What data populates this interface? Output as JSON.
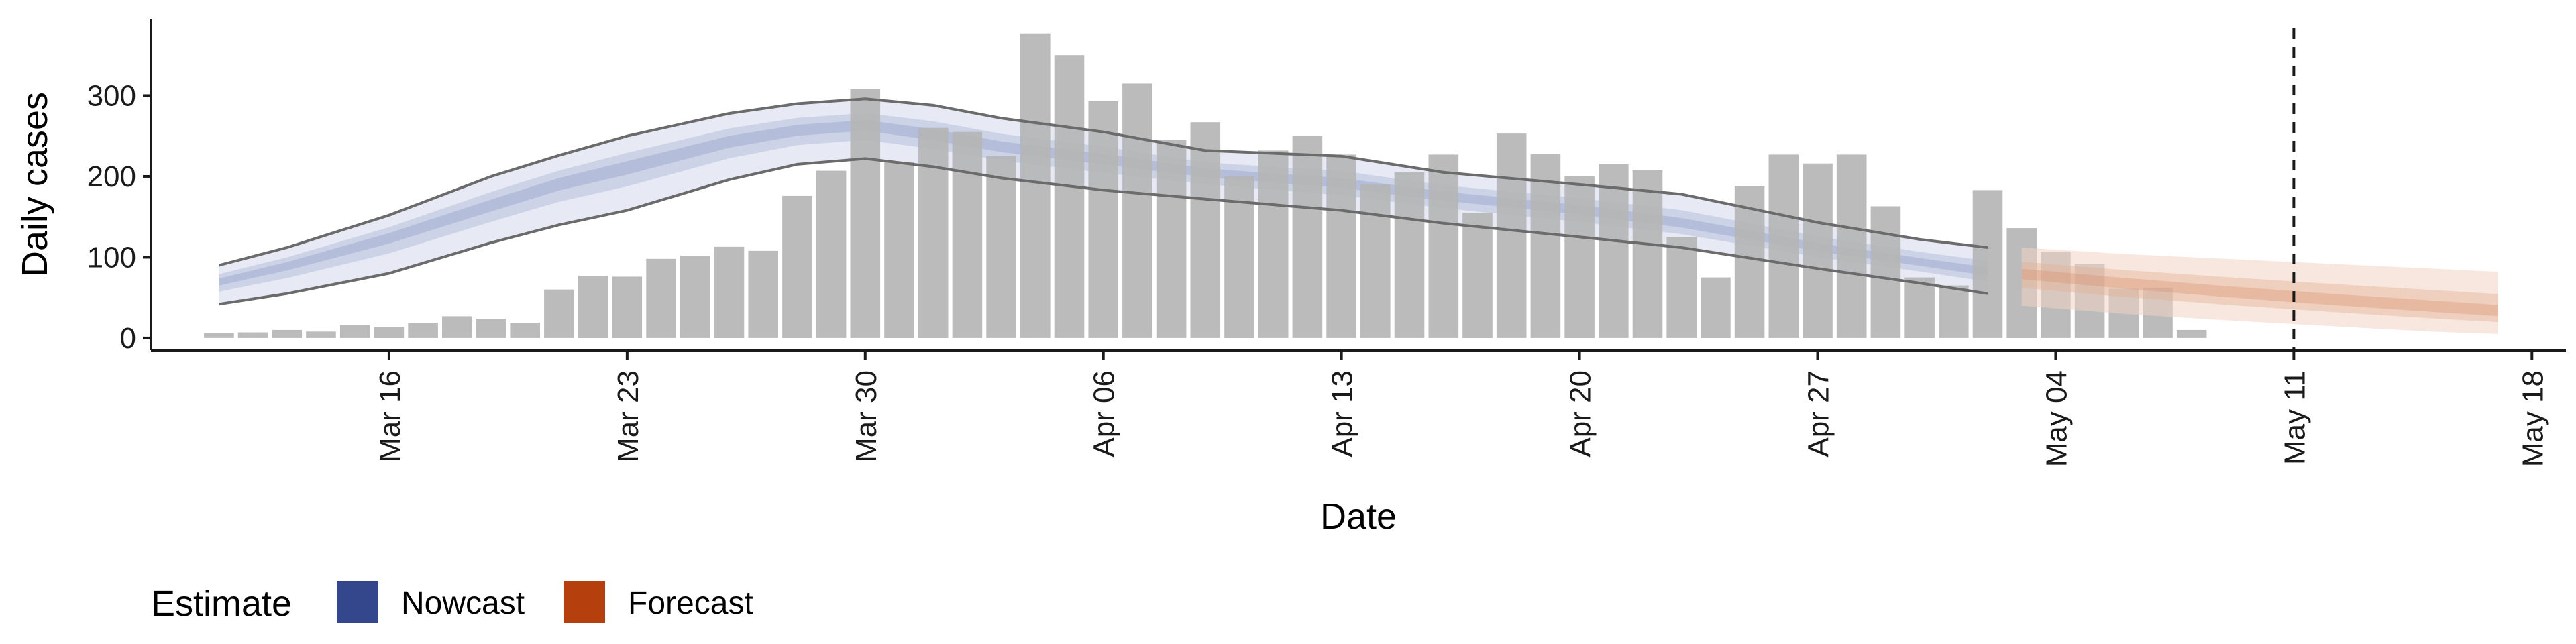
{
  "chart_data": {
    "type": "bar",
    "xlabel": "Date",
    "ylabel": "Daily cases",
    "xlim": [
      "2020-03-09",
      "2020-05-19"
    ],
    "ylim": [
      -15,
      395
    ],
    "x_ticks": [
      {
        "date": "2020-03-16",
        "label": "Mar 16"
      },
      {
        "date": "2020-03-23",
        "label": "Mar 23"
      },
      {
        "date": "2020-03-30",
        "label": "Mar 30"
      },
      {
        "date": "2020-04-06",
        "label": "Apr 06"
      },
      {
        "date": "2020-04-13",
        "label": "Apr 13"
      },
      {
        "date": "2020-04-20",
        "label": "Apr 20"
      },
      {
        "date": "2020-04-27",
        "label": "Apr 27"
      },
      {
        "date": "2020-05-04",
        "label": "May 04"
      },
      {
        "date": "2020-05-11",
        "label": "May 11"
      },
      {
        "date": "2020-05-18",
        "label": "May 18"
      }
    ],
    "y_ticks": [
      0,
      100,
      200,
      300
    ],
    "reference_line_date": "2020-05-11",
    "legend": {
      "title": "Estimate",
      "position": "bottom-left",
      "items": [
        {
          "label": "Nowcast",
          "color": "#35478c"
        },
        {
          "label": "Forecast",
          "color": "#b5400d"
        }
      ]
    },
    "observed": {
      "dates": [
        "2020-03-11",
        "2020-03-12",
        "2020-03-13",
        "2020-03-14",
        "2020-03-15",
        "2020-03-16",
        "2020-03-17",
        "2020-03-18",
        "2020-03-19",
        "2020-03-20",
        "2020-03-21",
        "2020-03-22",
        "2020-03-23",
        "2020-03-24",
        "2020-03-25",
        "2020-03-26",
        "2020-03-27",
        "2020-03-28",
        "2020-03-29",
        "2020-03-30",
        "2020-03-31",
        "2020-04-01",
        "2020-04-02",
        "2020-04-03",
        "2020-04-04",
        "2020-04-05",
        "2020-04-06",
        "2020-04-07",
        "2020-04-08",
        "2020-04-09",
        "2020-04-10",
        "2020-04-11",
        "2020-04-12",
        "2020-04-13",
        "2020-04-14",
        "2020-04-15",
        "2020-04-16",
        "2020-04-17",
        "2020-04-18",
        "2020-04-19",
        "2020-04-20",
        "2020-04-21",
        "2020-04-22",
        "2020-04-23",
        "2020-04-24",
        "2020-04-25",
        "2020-04-26",
        "2020-04-27",
        "2020-04-28",
        "2020-04-29",
        "2020-04-30",
        "2020-05-01",
        "2020-05-02",
        "2020-05-03",
        "2020-05-04",
        "2020-05-05",
        "2020-05-06",
        "2020-05-07",
        "2020-05-08",
        "2020-05-09",
        "2020-05-10"
      ],
      "values": [
        6,
        7,
        10,
        8,
        16,
        14,
        19,
        27,
        24,
        19,
        60,
        77,
        76,
        98,
        102,
        113,
        108,
        176,
        207,
        308,
        218,
        260,
        255,
        225,
        377,
        350,
        293,
        315,
        245,
        267,
        200,
        232,
        250,
        227,
        190,
        205,
        227,
        155,
        253,
        228,
        200,
        215,
        208,
        125,
        75,
        188,
        227,
        216,
        227,
        163,
        75,
        65,
        183,
        136,
        107,
        92,
        61,
        62,
        10,
        0,
        0
      ]
    },
    "nowcast": {
      "dates": [
        "2020-03-11",
        "2020-03-13",
        "2020-03-16",
        "2020-03-19",
        "2020-03-21",
        "2020-03-23",
        "2020-03-26",
        "2020-03-28",
        "2020-03-30",
        "2020-04-01",
        "2020-04-03",
        "2020-04-06",
        "2020-04-09",
        "2020-04-13",
        "2020-04-16",
        "2020-04-20",
        "2020-04-23",
        "2020-04-27",
        "2020-04-30",
        "2020-05-02"
      ],
      "median": [
        70,
        90,
        125,
        165,
        192,
        212,
        244,
        258,
        264,
        252,
        237,
        222,
        205,
        192,
        176,
        159,
        142,
        112,
        94,
        82
      ],
      "lower_90": [
        42,
        55,
        80,
        118,
        140,
        158,
        196,
        215,
        222,
        212,
        198,
        183,
        172,
        158,
        142,
        125,
        112,
        86,
        68,
        55
      ],
      "upper_90": [
        90,
        112,
        152,
        200,
        226,
        250,
        278,
        290,
        296,
        288,
        272,
        255,
        232,
        225,
        205,
        190,
        178,
        143,
        122,
        112
      ]
    },
    "forecast": {
      "dates": [
        "2020-05-03",
        "2020-05-06",
        "2020-05-09",
        "2020-05-12",
        "2020-05-15",
        "2020-05-17"
      ],
      "median": [
        80,
        68,
        57,
        47,
        38,
        32
      ],
      "lower_90": [
        40,
        30,
        22,
        15,
        8,
        5
      ],
      "upper_90": [
        112,
        104,
        98,
        92,
        86,
        82
      ]
    }
  }
}
